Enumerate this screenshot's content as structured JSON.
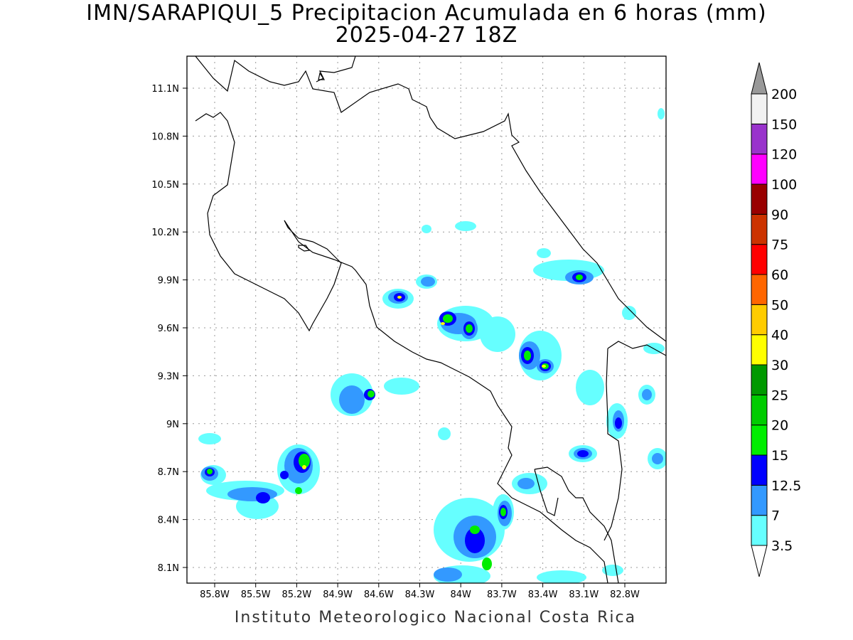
{
  "title": {
    "line1": "IMN/SARAPIQUI_5 Precipitacion Acumulada en 6 horas (mm)",
    "line2": "2025-04-27 18Z"
  },
  "credit": "Instituto Meteorologico Nacional Costa Rica",
  "lat_ticks": [
    "11.1N",
    "10.8N",
    "10.5N",
    "10.2N",
    "9.9N",
    "9.6N",
    "9.3N",
    "9N",
    "8.7N",
    "8.4N",
    "8.1N"
  ],
  "lon_ticks": [
    "85.8W",
    "85.5W",
    "85.2W",
    "84.9W",
    "84.6W",
    "84.3W",
    "84W",
    "83.7W",
    "83.4W",
    "83.1W",
    "82.8W"
  ],
  "colorbar": {
    "labels": [
      "3.5",
      "7",
      "12.5",
      "15",
      "20",
      "25",
      "30",
      "40",
      "50",
      "60",
      "75",
      "90",
      "100",
      "120",
      "150",
      "200"
    ],
    "colors": [
      "#66ffff",
      "#3399ff",
      "#0000ff",
      "#00ee00",
      "#00cc00",
      "#009900",
      "#ffff00",
      "#ffcc00",
      "#ff6600",
      "#ff0000",
      "#cc3300",
      "#990000",
      "#ff00ff",
      "#9933cc",
      "#f2f2f2"
    ],
    "over_color": "#999999"
  }
}
